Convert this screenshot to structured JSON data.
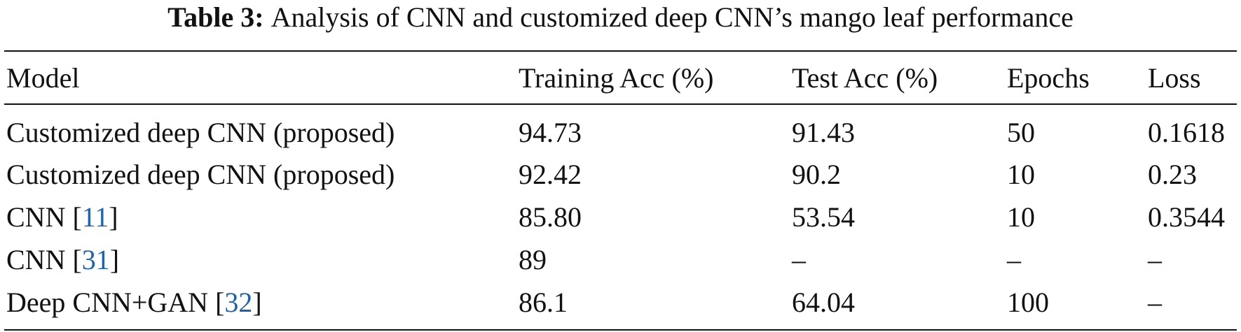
{
  "caption": {
    "label": "Table 3:",
    "text": "Analysis of CNN and customized deep CNN’s mango leaf performance"
  },
  "link_color": "#1f63b0",
  "table": {
    "header": [
      "Model",
      "Training Acc (%)",
      "Test Acc (%)",
      "Epochs",
      "Loss"
    ],
    "rows": [
      [
        [
          "Customized deep CNN (proposed)"
        ],
        "94.73",
        "91.43",
        "50",
        "0.1618"
      ],
      [
        [
          "Customized deep CNN (proposed)"
        ],
        "92.42",
        "90.2",
        "10",
        "0.23"
      ],
      [
        [
          "CNN [",
          "11",
          "]"
        ],
        "85.80",
        "53.54",
        "10",
        "0.3544"
      ],
      [
        [
          "CNN [",
          "31",
          "]"
        ],
        "89",
        "–",
        "–",
        "–"
      ],
      [
        [
          "Deep CNN+GAN [",
          "32",
          "]"
        ],
        "86.1",
        "64.04",
        "100",
        "–"
      ]
    ]
  }
}
